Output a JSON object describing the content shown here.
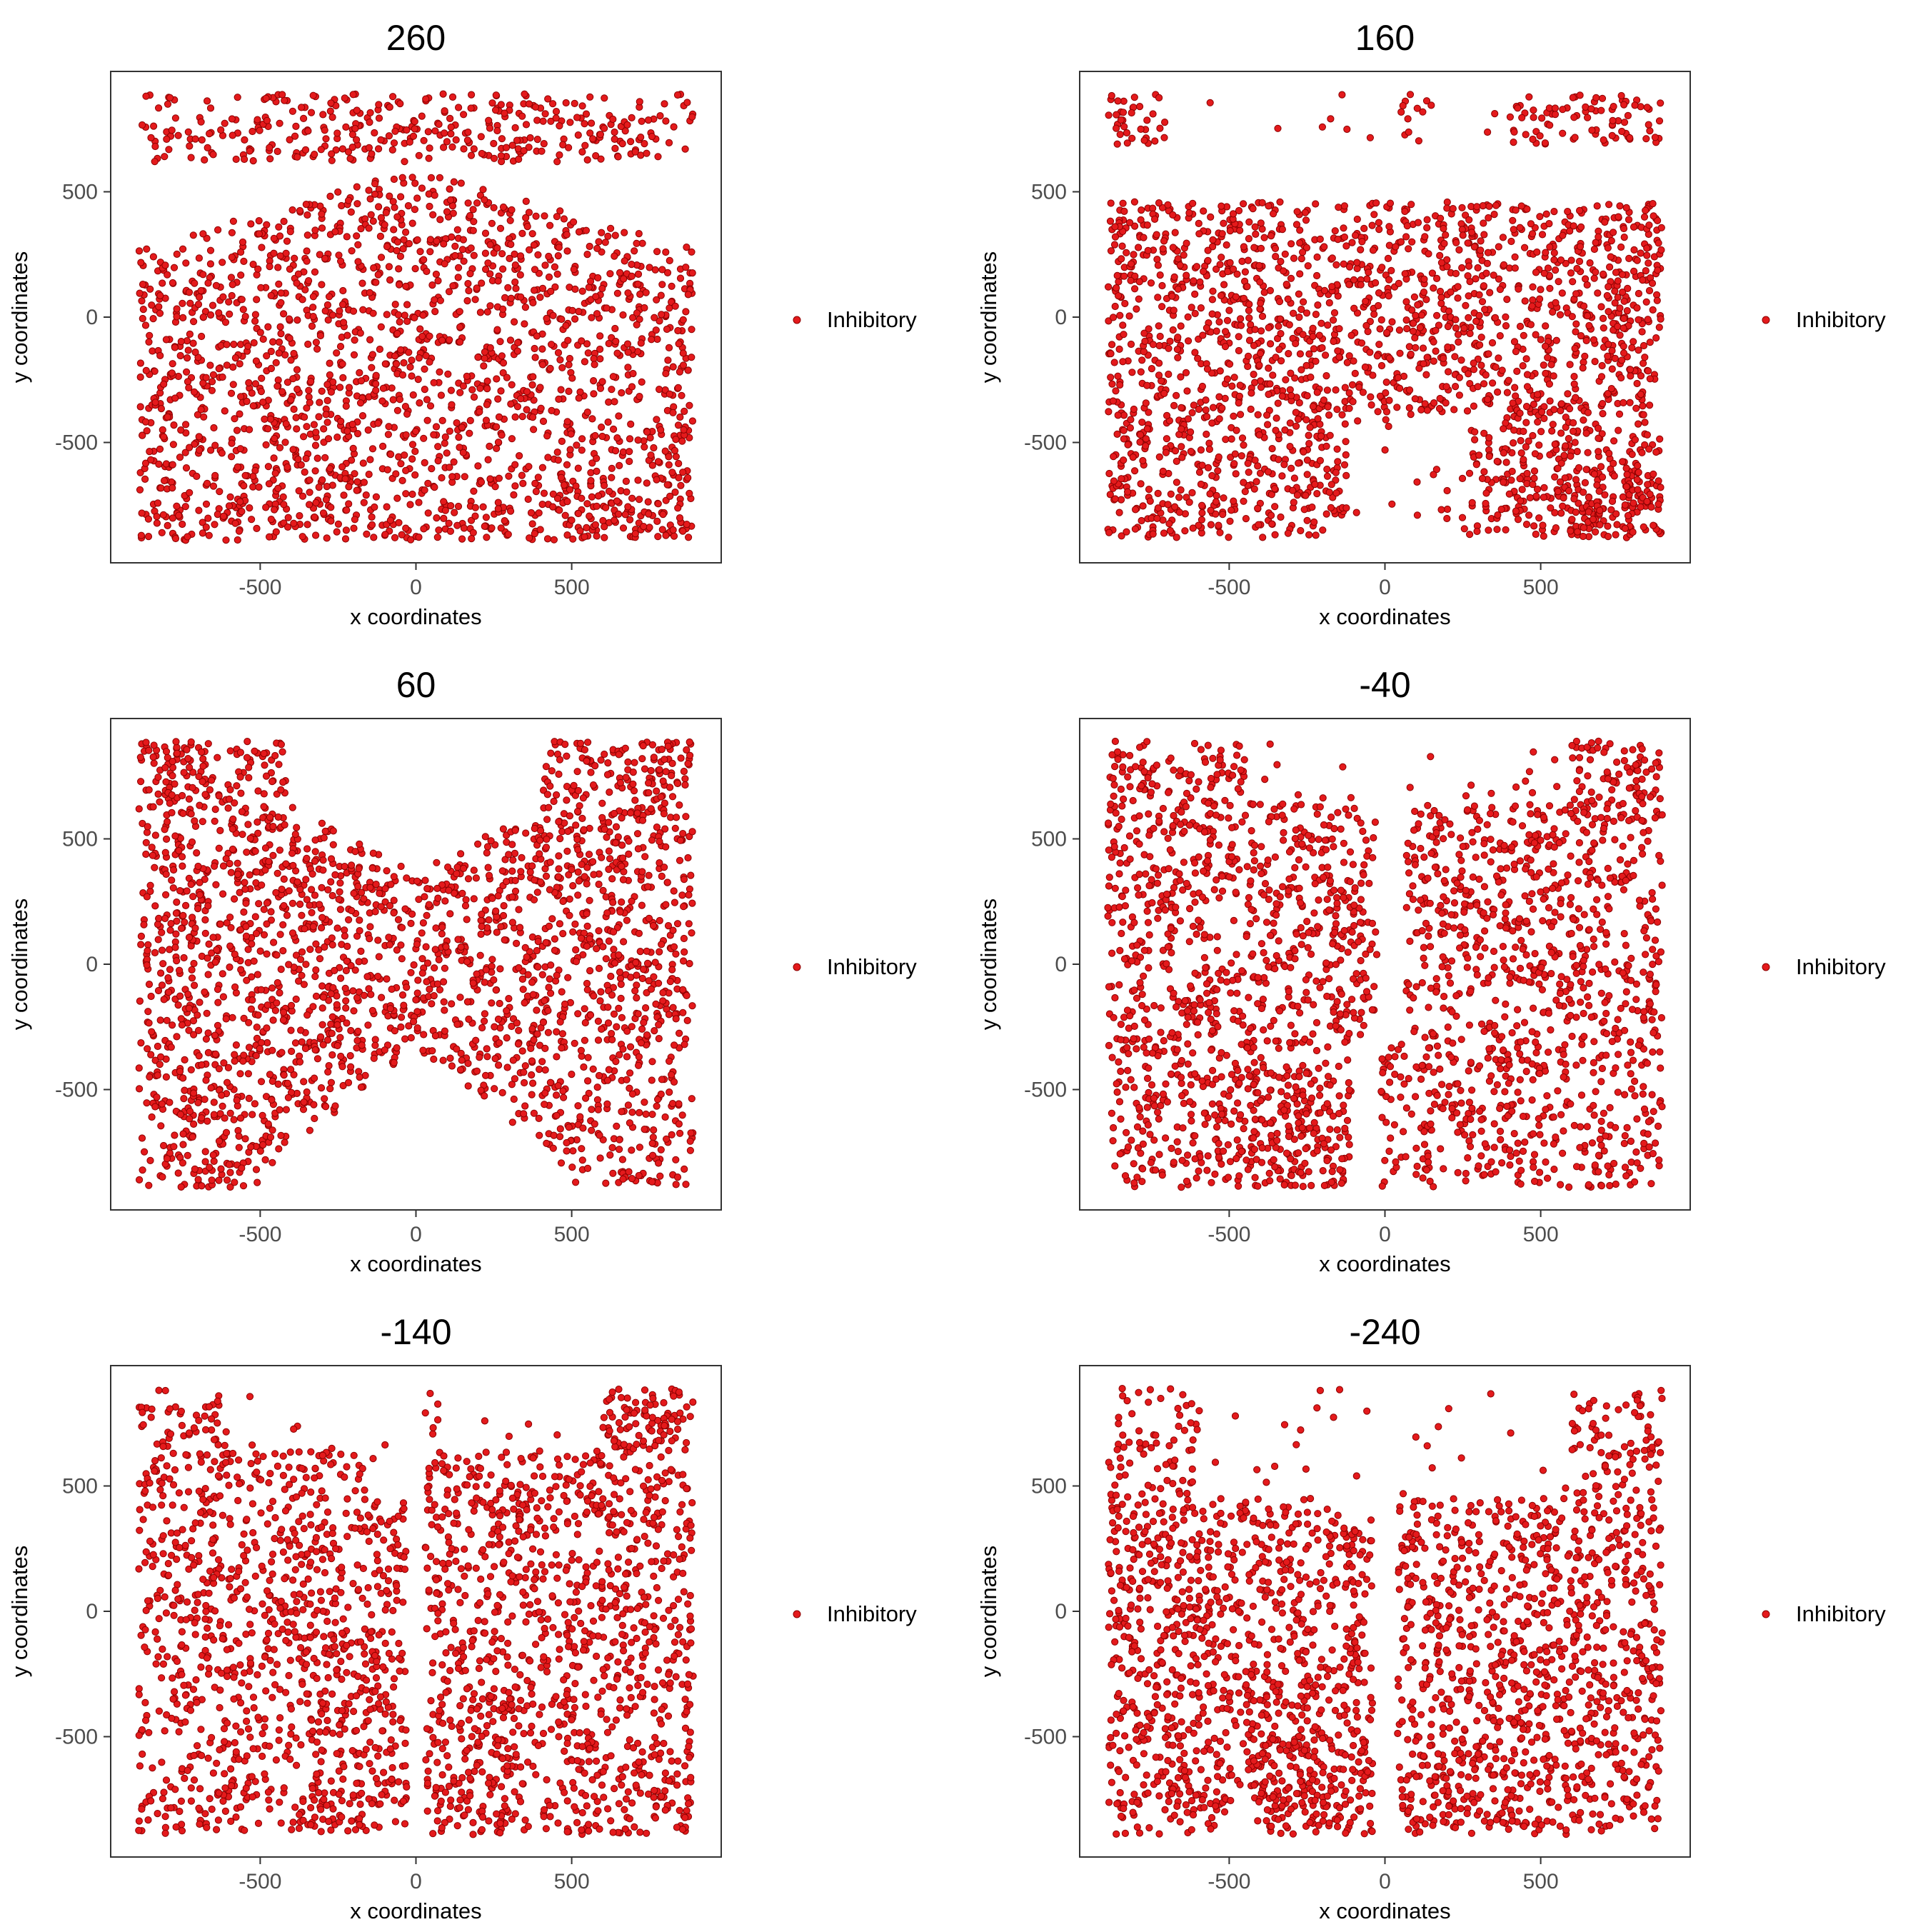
{
  "figure": {
    "marker_color": "#e41a1c",
    "marker_edge": "#8b0000",
    "legend_label": "Inhibitory"
  },
  "chart_data": [
    {
      "type": "scatter",
      "title": "260",
      "xlabel": "x coordinates",
      "ylabel": "y coordinates",
      "xlim": [
        -980,
        980
      ],
      "ylim": [
        -980,
        980
      ],
      "xticks": [
        -500,
        0,
        500
      ],
      "yticks": [
        -500,
        0,
        500
      ],
      "grid": false,
      "legend": "right",
      "series": [
        {
          "name": "Inhibitory",
          "pattern": "top band y 620–890; below, a peaked mass whose upper edge rises from ~280 at x=±880 to ~590 at x=0; dense bottom rows"
        }
      ]
    },
    {
      "type": "scatter",
      "title": "160",
      "xlabel": "x coordinates",
      "ylabel": "y coordinates",
      "xlim": [
        -980,
        980
      ],
      "ylim": [
        -980,
        980
      ],
      "xticks": [
        -500,
        0,
        500
      ],
      "yticks": [
        -500,
        0,
        500
      ],
      "grid": false,
      "legend": "right",
      "series": [
        {
          "name": "Inhibitory",
          "pattern": "sparse top band near left and right corners; broad block y -880 to 450 with a gap at the bottom centre"
        }
      ]
    },
    {
      "type": "scatter",
      "title": "60",
      "xlabel": "x coordinates",
      "ylabel": "y coordinates",
      "xlim": [
        -980,
        980
      ],
      "ylim": [
        -980,
        980
      ],
      "xticks": [
        -500,
        0,
        500
      ],
      "yticks": [
        -500,
        0,
        500
      ],
      "grid": false,
      "legend": "right",
      "series": [
        {
          "name": "Inhibitory",
          "pattern": "bow-tie shape: tall at both sides, pinched to about -330..330 at x=0; dense top corners"
        }
      ]
    },
    {
      "type": "scatter",
      "title": "-40",
      "xlabel": "x coordinates",
      "ylabel": "y coordinates",
      "xlim": [
        -980,
        980
      ],
      "ylim": [
        -980,
        980
      ],
      "xticks": [
        -500,
        0,
        500
      ],
      "yticks": [
        -500,
        0,
        500
      ],
      "grid": false,
      "legend": "right",
      "series": [
        {
          "name": "Inhibitory",
          "pattern": "two lobes split by a vertical gap near x≈0, full height on both sides"
        }
      ]
    },
    {
      "type": "scatter",
      "title": "-140",
      "xlabel": "x coordinates",
      "ylabel": "y coordinates",
      "xlim": [
        -980,
        980
      ],
      "ylim": [
        -980,
        980
      ],
      "xticks": [
        -500,
        0,
        500
      ],
      "yticks": [
        -500,
        0,
        500
      ],
      "grid": false,
      "legend": "right",
      "series": [
        {
          "name": "Inhibitory",
          "pattern": "two dense lobes separated at x≈0, lobes shorter toward the centre, dense lower middle"
        }
      ]
    },
    {
      "type": "scatter",
      "title": "-240",
      "xlabel": "x coordinates",
      "ylabel": "y coordinates",
      "xlim": [
        -980,
        980
      ],
      "ylim": [
        -980,
        980
      ],
      "xticks": [
        -500,
        0,
        500
      ],
      "yticks": [
        -500,
        0,
        500
      ],
      "grid": false,
      "legend": "right",
      "series": [
        {
          "name": "Inhibitory",
          "pattern": "two lobes with upper edge near 450 toward the centre and scattered top corners; dense bottom rows"
        }
      ]
    }
  ]
}
